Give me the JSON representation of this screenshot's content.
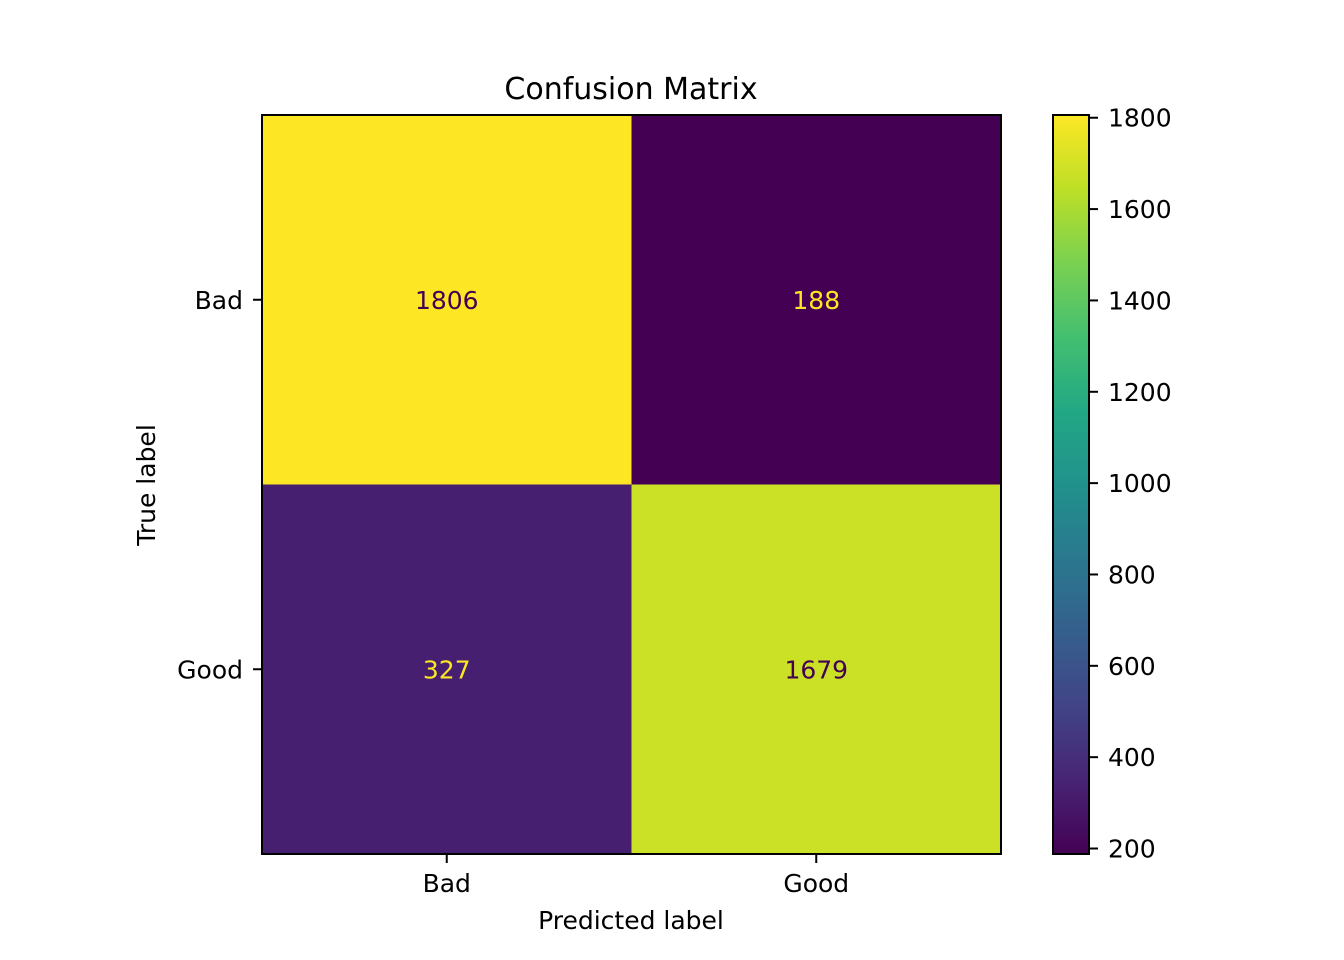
{
  "chart_data": {
    "type": "heatmap",
    "title": "Confusion Matrix",
    "xlabel": "Predicted label",
    "ylabel": "True label",
    "x_categories": [
      "Bad",
      "Good"
    ],
    "y_categories": [
      "Bad",
      "Good"
    ],
    "values": [
      [
        1806,
        188
      ],
      [
        327,
        1679
      ]
    ],
    "colormap": "viridis",
    "colorbar": {
      "range": [
        188,
        1806
      ],
      "ticks": [
        200,
        400,
        600,
        800,
        1000,
        1200,
        1400,
        1600,
        1800
      ],
      "tick_labels": [
        "200",
        "400",
        "600",
        "800",
        "1000",
        "1200",
        "1400",
        "1600",
        "1800"
      ]
    },
    "cell_text_colors": {
      "on_dark": "#fde725",
      "on_light": "#440154"
    },
    "grid": false
  }
}
